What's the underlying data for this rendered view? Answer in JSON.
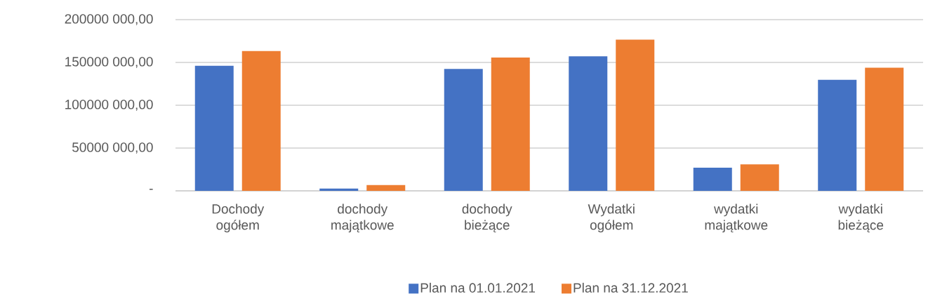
{
  "chart_data": {
    "type": "bar",
    "categories": [
      "Dochody ogółem",
      "dochody majątkowe",
      "dochody bieżące",
      "Wydatki ogółem",
      "wydatki majątkowe",
      "wydatki bieżące"
    ],
    "series": [
      {
        "name": "Plan na 01.01.2021",
        "color": "#4472c4",
        "values": [
          146200000,
          2700000,
          142500000,
          157200000,
          27000000,
          129800000
        ]
      },
      {
        "name": "Plan na 31.12.2021",
        "color": "#ed7d31",
        "values": [
          163400000,
          6800000,
          155800000,
          176700000,
          31000000,
          143800000
        ]
      }
    ],
    "ylim": [
      0,
      200000000
    ],
    "yticks": [
      {
        "value": 0,
        "label": "-"
      },
      {
        "value": 50000000,
        "label": "50000 000,00"
      },
      {
        "value": 100000000,
        "label": "100000 000,00"
      },
      {
        "value": 150000000,
        "label": "150000 000,00"
      },
      {
        "value": 200000000,
        "label": "200000 000,00"
      }
    ],
    "grid": "y",
    "legend": "bottom"
  }
}
